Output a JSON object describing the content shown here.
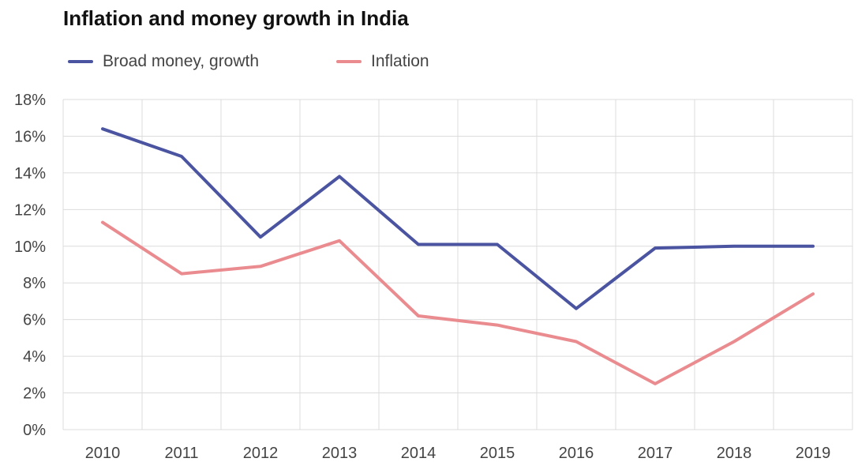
{
  "chart_data": {
    "type": "line",
    "title": "Inflation and money growth in India",
    "xlabel": "",
    "ylabel": "",
    "x": [
      "2010",
      "2011",
      "2012",
      "2013",
      "2014",
      "2015",
      "2016",
      "2017",
      "2018",
      "2019"
    ],
    "ylim": [
      0,
      18
    ],
    "y_ticks": [
      "0%",
      "2%",
      "4%",
      "6%",
      "8%",
      "10%",
      "12%",
      "14%",
      "16%",
      "18%"
    ],
    "y_tick_values": [
      0,
      2,
      4,
      6,
      8,
      10,
      12,
      14,
      16,
      18
    ],
    "grid": true,
    "legend_position": "top-left",
    "series": [
      {
        "name": "Broad money, growth",
        "color": "#4a54a0",
        "values": [
          16.4,
          14.9,
          10.5,
          13.8,
          10.1,
          10.1,
          6.6,
          9.9,
          10.0,
          10.0
        ]
      },
      {
        "name": "Inflation",
        "color": "#ea8b8f",
        "values": [
          11.3,
          8.5,
          8.9,
          10.3,
          6.2,
          5.7,
          4.8,
          2.5,
          4.8,
          7.4
        ]
      }
    ]
  }
}
